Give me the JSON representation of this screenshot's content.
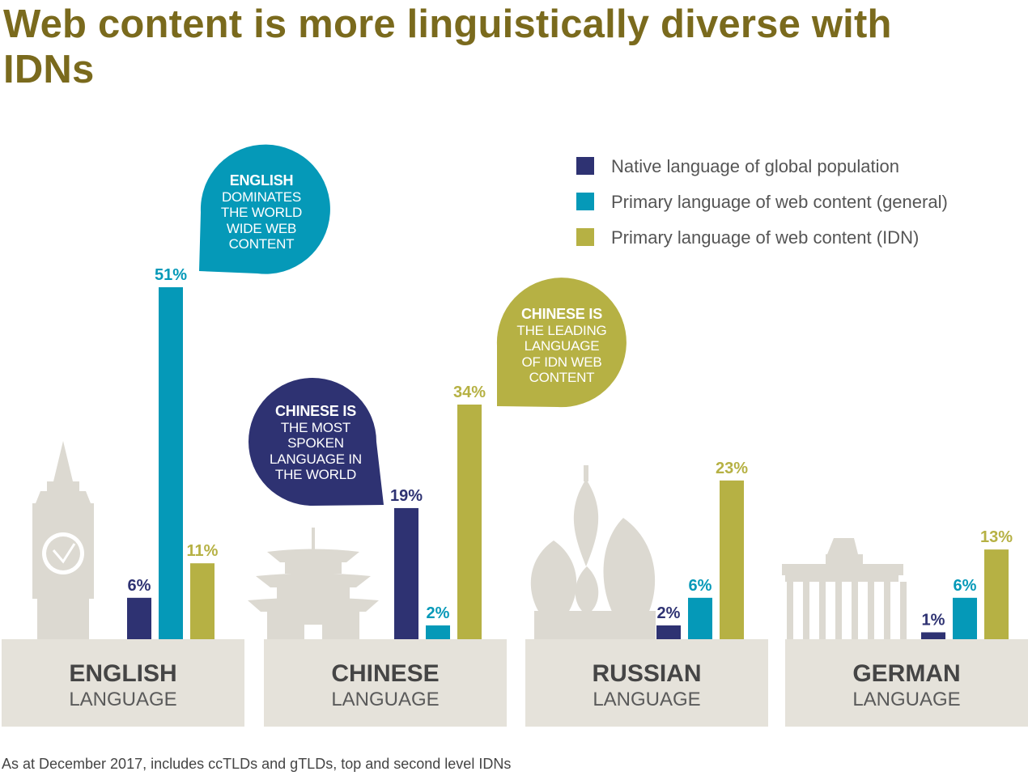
{
  "title": "Web content is more linguistically diverse with IDNs",
  "footnote": "As at December 2017, includes ccTLDs and gTLDs, top and second level IDNs",
  "colors": {
    "native": "#2e3272",
    "general": "#0599b8",
    "idn": "#b6b144",
    "platform": "#e5e2da",
    "landmark": "#dcd9d1",
    "title": "#7a6a1d"
  },
  "legend": [
    {
      "key": "native",
      "label": "Native language of global population"
    },
    {
      "key": "general",
      "label": "Primary language of web content (general)"
    },
    {
      "key": "idn",
      "label": "Primary language of web content (IDN)"
    }
  ],
  "chart_data": {
    "type": "bar",
    "title": "Web content is more linguistically diverse with IDNs",
    "categories": [
      "ENGLISH",
      "CHINESE",
      "RUSSIAN",
      "GERMAN"
    ],
    "category_sublabel": "LANGUAGE",
    "series": [
      {
        "name": "Native language of global population",
        "key": "native",
        "values": [
          6,
          19,
          2,
          1
        ],
        "labels": [
          "6%",
          "19%",
          "2%",
          "1%"
        ]
      },
      {
        "name": "Primary language of web content (general)",
        "key": "general",
        "values": [
          51,
          2,
          6,
          6
        ],
        "labels": [
          "51%",
          "2%",
          "6%",
          "6%"
        ]
      },
      {
        "name": "Primary language of web content (IDN)",
        "key": "idn",
        "values": [
          11,
          34,
          23,
          13
        ],
        "labels": [
          "11%",
          "34%",
          "23%",
          "13%"
        ]
      }
    ],
    "ylim": [
      0,
      51
    ],
    "grid": false,
    "legend_position": "top-right",
    "annotations": [
      {
        "id": "english",
        "color_key": "general",
        "bold": "ENGLISH",
        "text": [
          "DOMINATES",
          "THE WORLD",
          "WIDE WEB",
          "CONTENT"
        ]
      },
      {
        "id": "chinese-spoken",
        "color_key": "native",
        "bold": "CHINESE IS",
        "text": [
          "THE MOST",
          "SPOKEN",
          "LANGUAGE IN",
          "THE WORLD"
        ]
      },
      {
        "id": "chinese-idn",
        "color_key": "idn",
        "bold": "CHINESE IS",
        "text": [
          "THE LEADING",
          "LANGUAGE",
          "OF IDN WEB",
          "CONTENT"
        ]
      }
    ]
  }
}
